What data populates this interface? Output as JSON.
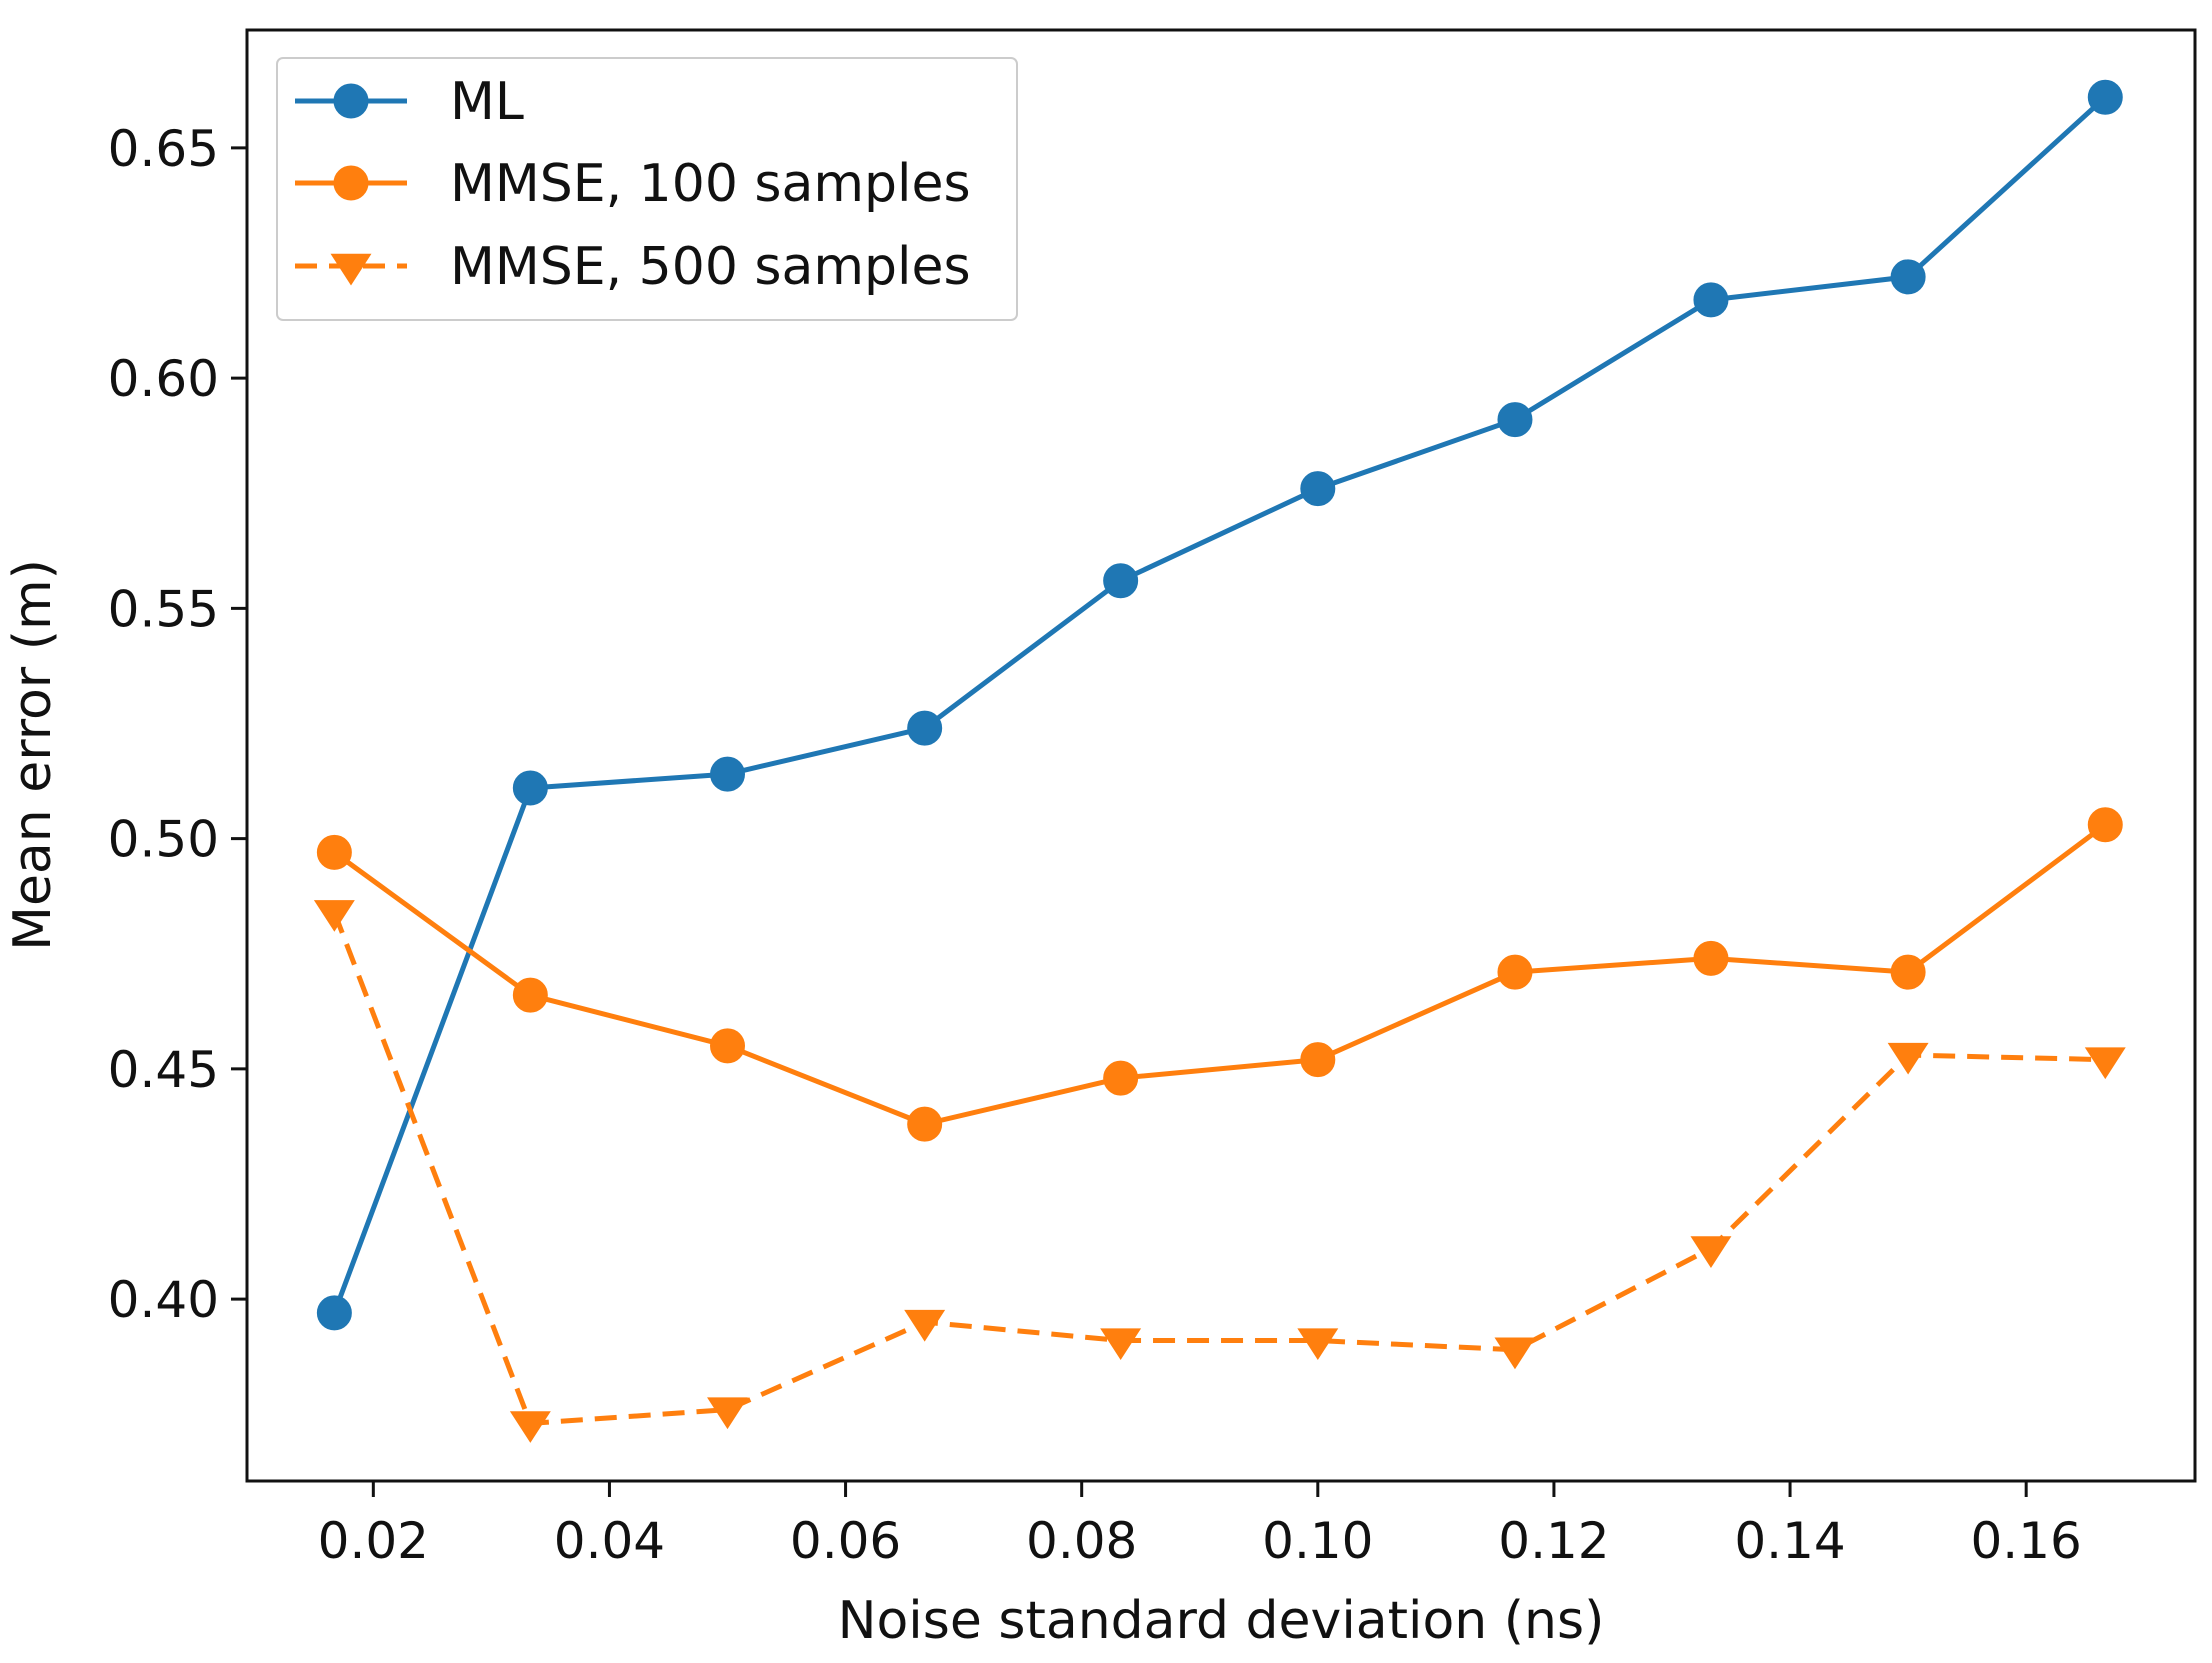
{
  "chart_data": {
    "type": "line",
    "title": "",
    "xlabel": "Noise standard deviation (ns)",
    "ylabel": "Mean error (m)",
    "xlim": [
      0.0093,
      0.1743
    ],
    "ylim": [
      0.3605,
      0.6756
    ],
    "grid": false,
    "legend_position": "top-left",
    "x": [
      0.0167,
      0.0333,
      0.05,
      0.0667,
      0.0833,
      0.1,
      0.1167,
      0.1333,
      0.15,
      0.1667
    ],
    "xticks": [
      0.02,
      0.04,
      0.06,
      0.08,
      0.1,
      0.12,
      0.14,
      0.16
    ],
    "xtick_labels": [
      "0.02",
      "0.04",
      "0.06",
      "0.08",
      "0.10",
      "0.12",
      "0.14",
      "0.16"
    ],
    "yticks": [
      0.4,
      0.45,
      0.5,
      0.55,
      0.6,
      0.65
    ],
    "ytick_labels": [
      "0.40",
      "0.45",
      "0.50",
      "0.55",
      "0.60",
      "0.65"
    ],
    "series": [
      {
        "name": "ML",
        "color": "#1f77b4",
        "marker": "circle",
        "line_style": "solid",
        "values": [
          0.397,
          0.511,
          0.514,
          0.524,
          0.556,
          0.576,
          0.591,
          0.617,
          0.622,
          0.661
        ]
      },
      {
        "name": "MMSE, 100 samples",
        "color": "#ff7f0e",
        "marker": "circle",
        "line_style": "solid",
        "values": [
          0.497,
          0.466,
          0.455,
          0.438,
          0.448,
          0.452,
          0.471,
          0.474,
          0.471,
          0.503
        ]
      },
      {
        "name": "MMSE, 500 samples",
        "color": "#ff7f0e",
        "marker": "triangle-down",
        "line_style": "dashed",
        "values": [
          0.484,
          0.373,
          0.376,
          0.395,
          0.391,
          0.391,
          0.389,
          0.411,
          0.453,
          0.452
        ]
      }
    ]
  }
}
